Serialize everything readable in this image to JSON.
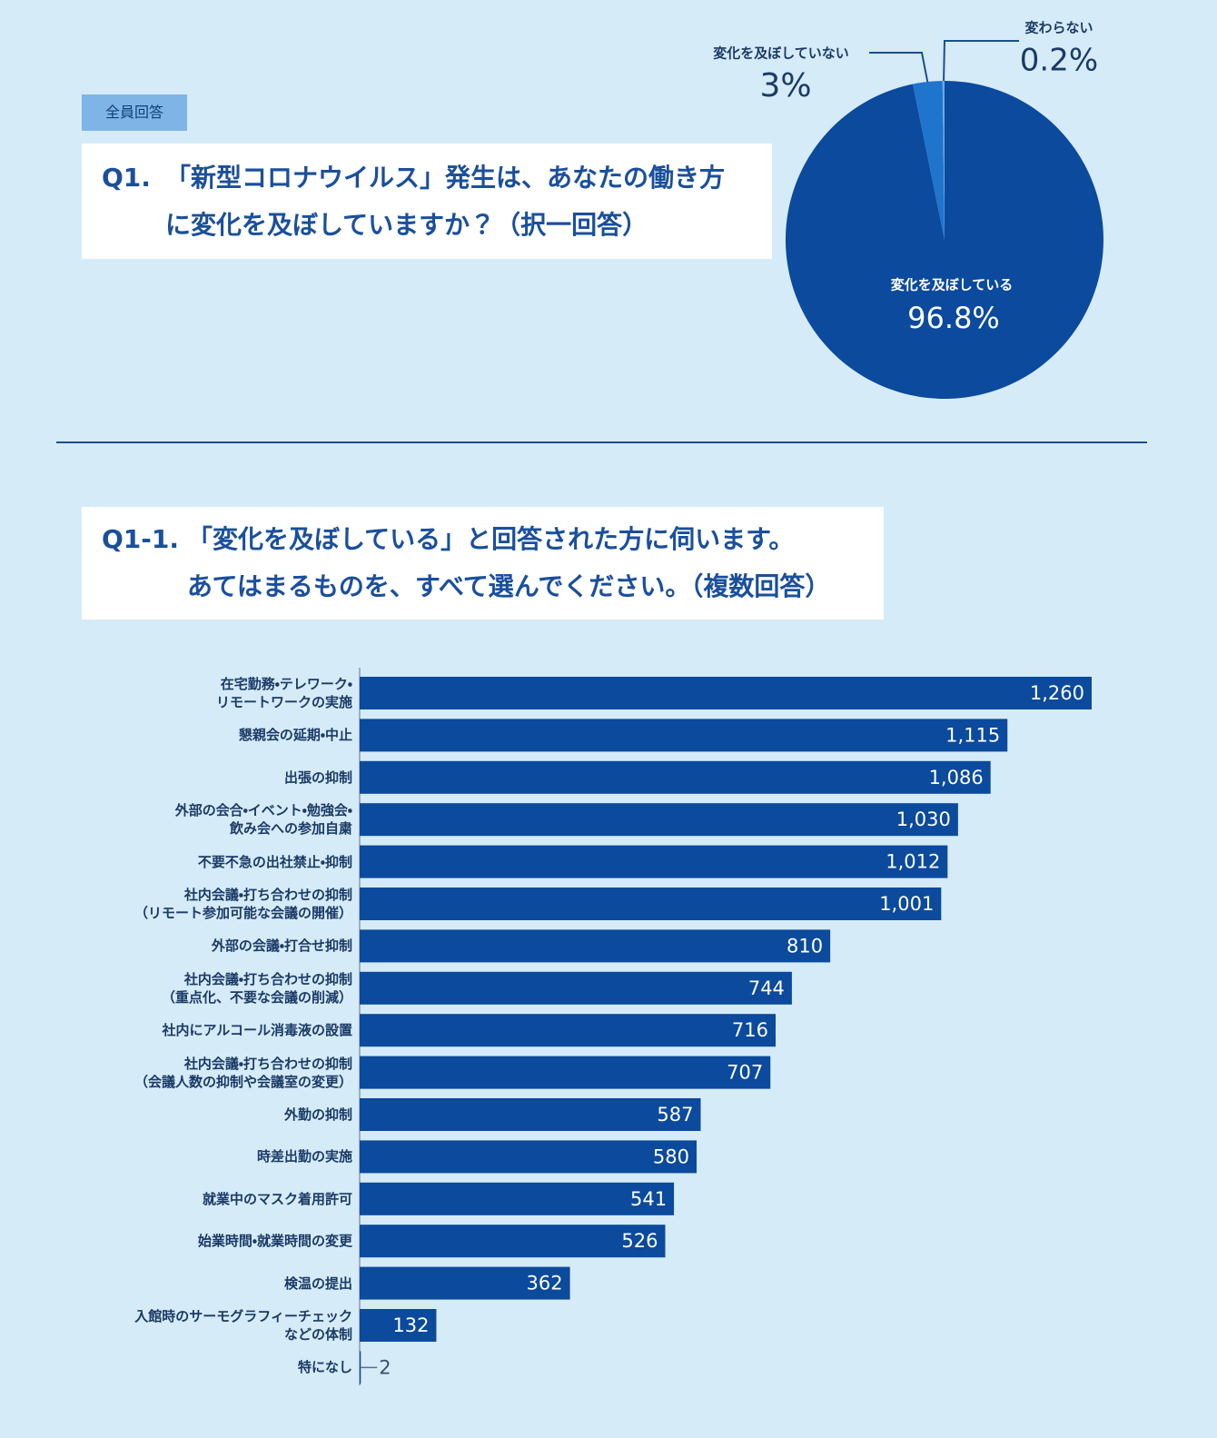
{
  "chart_data": [
    {
      "type": "pie",
      "badge": "全員回答",
      "number": "Q1.",
      "title": "「新型コロナウイルス」発生は、あなたの働き方\nに変化を及ぼしていますか？（択一回答）",
      "categories": [
        "変化を及ぼしている",
        "変化を及ぼしていない",
        "変わらない"
      ],
      "values": [
        96.8,
        3,
        0.2
      ],
      "value_labels": [
        "96.8%",
        "3%",
        "0.2%"
      ],
      "colors": [
        "#0b4a9c",
        "#1f74cc",
        "#6aaae6"
      ]
    },
    {
      "type": "hbar",
      "number": "Q1-1.",
      "title": "「変化を及ぼしている」と回答された方に伺います。\nあてはまるものを、すべて選んでください。（複数回答）",
      "color": "#0b4a9c",
      "categories": [
        "在宅勤務・テレワーク・\nリモートワークの実施",
        "懇親会の延期・中止",
        "出張の抑制",
        "外部の会合・イベント・勉強会・\n飲み会への参加自粛",
        "不要不急の出社禁止・抑制",
        "社内会議・打ち合わせの抑制\n（リモート参加可能な会議の開催）",
        "外部の会議・打合せ抑制",
        "社内会議・打ち合わせの抑制\n（重点化、不要な会議の削減）",
        "社内にアルコール消毒液の設置",
        "社内会議・打ち合わせの抑制\n（会議人数の抑制や会議室の変更）",
        "外勤の抑制",
        "時差出勤の実施",
        "就業中のマスク着用許可",
        "始業時間・就業時間の変更",
        "検温の提出",
        "入館時のサーモグラフィーチェック\nなどの体制",
        "特になし"
      ],
      "values": [
        1260,
        1115,
        1086,
        1030,
        1012,
        1001,
        810,
        744,
        716,
        707,
        587,
        580,
        541,
        526,
        362,
        132,
        2
      ],
      "value_labels": [
        "1,260",
        "1,115",
        "1,086",
        "1,030",
        "1,012",
        "1,001",
        "810",
        "744",
        "716",
        "707",
        "587",
        "580",
        "541",
        "526",
        "362",
        "132",
        "2"
      ]
    }
  ]
}
